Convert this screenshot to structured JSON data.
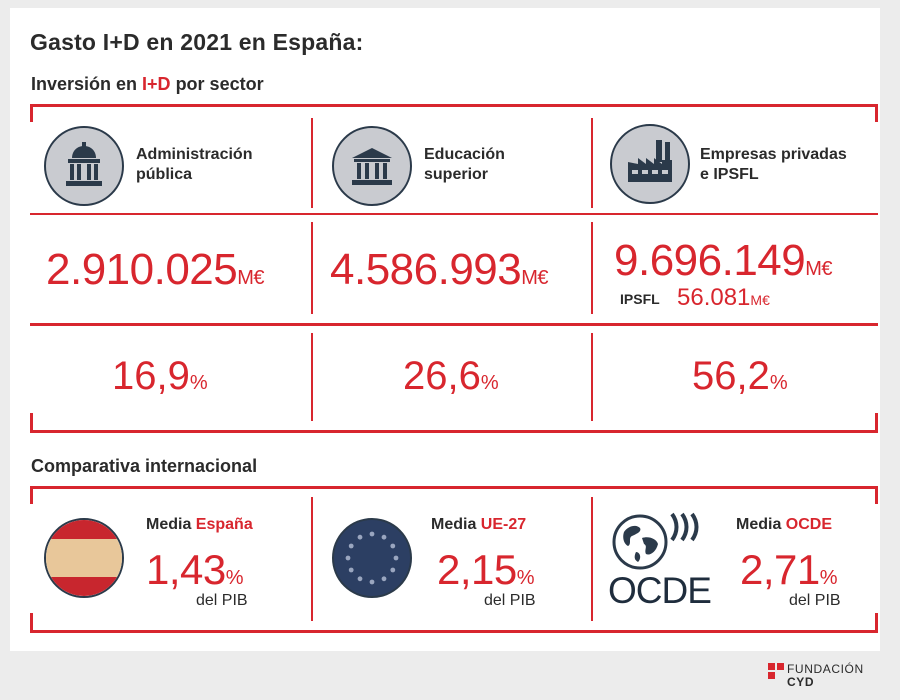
{
  "title": "Gasto I+D en 2021 en España:",
  "subtitle": {
    "before": "Inversión en ",
    "highlight": "I+D",
    "after": " por sector"
  },
  "sectors": [
    {
      "label_line1": "Administración",
      "label_line2": "pública",
      "amount": "2.910.025",
      "unit": "M€",
      "pct": "16,9",
      "pct_unit": "%",
      "icon": "government-building-icon"
    },
    {
      "label_line1": "Educación",
      "label_line2": "superior",
      "amount": "4.586.993",
      "unit": "M€",
      "pct": "26,6",
      "pct_unit": "%",
      "icon": "university-icon"
    },
    {
      "label_line1": "Empresas privadas",
      "label_line2": "e IPSFL",
      "amount": "9.696.149",
      "unit": "M€",
      "pct": "56,2",
      "pct_unit": "%",
      "icon": "factory-icon",
      "sub_label": "IPSFL",
      "sub_amount": "56.081",
      "sub_unit": "M€"
    }
  ],
  "comparison": {
    "title": "Comparativa internacional",
    "items": [
      {
        "label": "Media ",
        "highlight": "España",
        "value": "1,43",
        "unit": "%",
        "note": "del PIB",
        "icon": "spain-flag-icon"
      },
      {
        "label": "Media ",
        "highlight": "UE-27",
        "value": "2,15",
        "unit": "%",
        "note": "del PIB",
        "icon": "eu-flag-icon"
      },
      {
        "label": "Media ",
        "highlight": "OCDE",
        "value": "2,71",
        "unit": "%",
        "note": "del PIB",
        "icon": "ocde-logo-icon",
        "logo_text": "OCDE"
      }
    ]
  },
  "footer": {
    "line1": "FUNDACIÓN",
    "line2": "CYD"
  },
  "colors": {
    "accent": "#d8262e",
    "text": "#2b2b2b",
    "icon_bg": "#c9cbd0",
    "eu_blue": "#2c3f63"
  }
}
